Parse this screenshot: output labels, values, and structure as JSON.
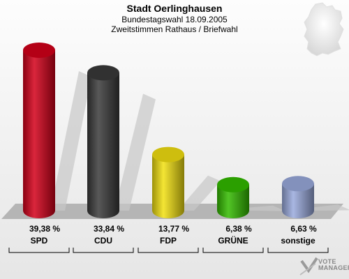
{
  "header": {
    "title": "Stadt Oerlinghausen",
    "subtitle1": "Bundestagswahl 18.09.2005",
    "subtitle2": "Zweitstimmen Rathaus / Briefwahl"
  },
  "chart_data": {
    "type": "bar",
    "title": "Stadt Oerlinghausen",
    "categories": [
      "SPD",
      "CDU",
      "FDP",
      "GRÜNE",
      "sonstige"
    ],
    "values": [
      39.38,
      33.84,
      13.77,
      6.38,
      6.63
    ],
    "value_labels": [
      "39,38 %",
      "33,84 %",
      "13,77 %",
      "6,38 %",
      "6,63 %"
    ],
    "colors": [
      "#d4001a",
      "#3a3a3a",
      "#f2e010",
      "#33bb00",
      "#9aaadd"
    ],
    "ylim": [
      0,
      39.38
    ],
    "grid": false,
    "legend": "none"
  },
  "branding": {
    "logo_icon": "vote-manager-logo-icon",
    "logo_line1": "VOTE",
    "logo_line2": "MANAGER",
    "map_icon": "germany-map-icon"
  }
}
